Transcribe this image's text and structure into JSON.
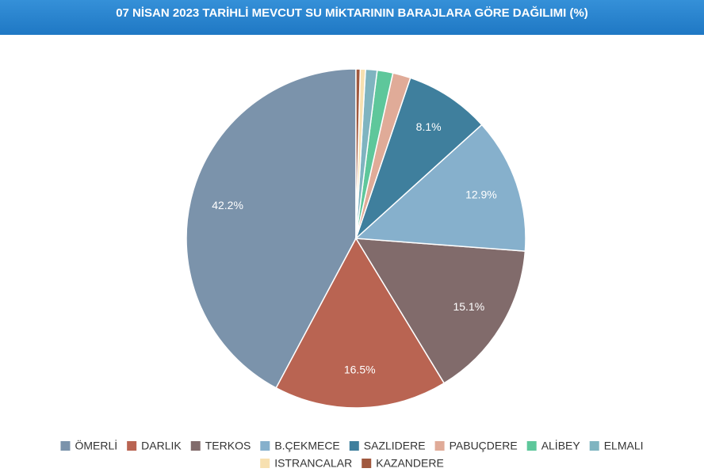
{
  "chart_data": {
    "type": "pie",
    "title": "07 NİSAN 2023 TARİHLİ MEVCUT SU MİKTARININ BARAJLARA GÖRE DAĞILIMI (%)",
    "categories": [
      "ÖMERLİ",
      "DARLIK",
      "TERKOS",
      "B.ÇEKMECE",
      "SAZLIDERE",
      "PABUÇDERE",
      "ALİBEY",
      "ELMALI",
      "ISTRANCALAR",
      "KAZANDERE"
    ],
    "values": [
      42.2,
      16.5,
      15.1,
      12.9,
      8.1,
      1.7,
      1.5,
      1.1,
      0.5,
      0.4
    ],
    "value_labels": [
      "42.2%",
      "16.5%",
      "15.1%",
      "12.9%",
      "8.1%",
      null,
      null,
      null,
      null,
      null
    ],
    "colors": [
      "#7b93ab",
      "#b96452",
      "#816b6b",
      "#86b0cc",
      "#3f7f9d",
      "#e0ab98",
      "#5ec79b",
      "#7fb4c0",
      "#f7e0b0",
      "#a0583e"
    ],
    "direction": "counterclockwise",
    "legend": "bottom"
  }
}
